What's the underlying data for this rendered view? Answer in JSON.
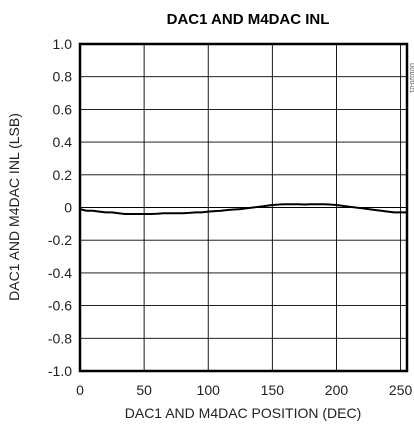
{
  "chart_data": {
    "type": "line",
    "title": "DAC1 AND M4DAC INL",
    "xlabel": "DAC1 AND M4DAC POSITION (DEC)",
    "ylabel": "DAC1 AND M4DAC INL (LSB)",
    "xlim": [
      0,
      255
    ],
    "ylim": [
      -1.0,
      1.0
    ],
    "x_ticks": [
      0,
      50,
      100,
      150,
      200,
      250
    ],
    "x_tick_labels": [
      "0",
      "50",
      "100",
      "150",
      "200",
      "250"
    ],
    "y_ticks": [
      1.0,
      0.8,
      0.6,
      0.4,
      0.2,
      0,
      -0.2,
      -0.4,
      -0.6,
      -0.8,
      -1.0
    ],
    "y_tick_labels": [
      "1.0",
      "0.8",
      "0.6",
      "0.4",
      "0.2",
      "0",
      "-0.2",
      "-0.4",
      "-0.6",
      "-0.8",
      "-1.0"
    ],
    "grid": true,
    "side_code": "D01020-01",
    "series": [
      {
        "color": "#000000",
        "x": [
          0,
          5,
          10,
          15,
          20,
          25,
          30,
          35,
          40,
          45,
          50,
          55,
          60,
          65,
          70,
          75,
          80,
          85,
          90,
          95,
          100,
          105,
          110,
          115,
          120,
          125,
          130,
          135,
          140,
          145,
          150,
          155,
          160,
          165,
          170,
          175,
          180,
          185,
          190,
          195,
          200,
          205,
          210,
          215,
          220,
          225,
          230,
          235,
          240,
          245,
          250,
          255
        ],
        "values": [
          -0.01,
          -0.02,
          -0.02,
          -0.025,
          -0.03,
          -0.03,
          -0.035,
          -0.04,
          -0.04,
          -0.04,
          -0.04,
          -0.04,
          -0.038,
          -0.035,
          -0.035,
          -0.035,
          -0.035,
          -0.033,
          -0.03,
          -0.03,
          -0.025,
          -0.022,
          -0.02,
          -0.015,
          -0.012,
          -0.01,
          -0.005,
          0.0,
          0.005,
          0.01,
          0.015,
          0.018,
          0.02,
          0.02,
          0.02,
          0.018,
          0.02,
          0.02,
          0.02,
          0.018,
          0.015,
          0.01,
          0.005,
          0.0,
          -0.005,
          -0.01,
          -0.015,
          -0.02,
          -0.025,
          -0.03,
          -0.03,
          -0.03
        ]
      }
    ]
  }
}
